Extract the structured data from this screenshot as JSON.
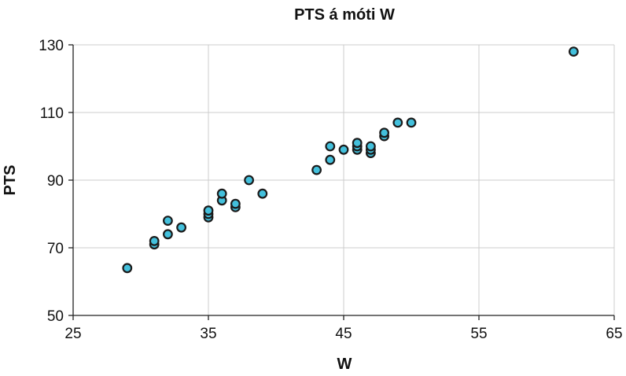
{
  "chart_data": {
    "type": "scatter",
    "title": "PTS á móti W",
    "xlabel": "W",
    "ylabel": "PTS",
    "xlim": [
      25,
      65
    ],
    "ylim": [
      50,
      130
    ],
    "xticks": [
      25,
      35,
      45,
      55,
      65
    ],
    "yticks": [
      50,
      70,
      90,
      110,
      130
    ],
    "grid": true,
    "marker_color": "#43c0dc",
    "marker_edge_color": "#1b1b1b",
    "points": [
      [
        29,
        64
      ],
      [
        31,
        71
      ],
      [
        31,
        72
      ],
      [
        32,
        74
      ],
      [
        32,
        78
      ],
      [
        33,
        76
      ],
      [
        35,
        79
      ],
      [
        35,
        80
      ],
      [
        35,
        81
      ],
      [
        36,
        84
      ],
      [
        36,
        86
      ],
      [
        37,
        82
      ],
      [
        37,
        83
      ],
      [
        38,
        90
      ],
      [
        39,
        86
      ],
      [
        43,
        93
      ],
      [
        44,
        96
      ],
      [
        44,
        100
      ],
      [
        45,
        99
      ],
      [
        46,
        99
      ],
      [
        46,
        100
      ],
      [
        46,
        101
      ],
      [
        47,
        98
      ],
      [
        47,
        99
      ],
      [
        47,
        100
      ],
      [
        48,
        103
      ],
      [
        48,
        104
      ],
      [
        49,
        107
      ],
      [
        50,
        107
      ],
      [
        62,
        128
      ]
    ]
  }
}
